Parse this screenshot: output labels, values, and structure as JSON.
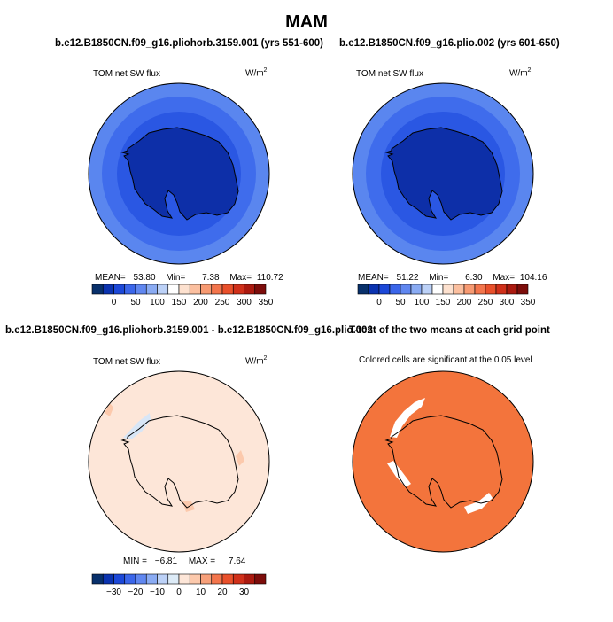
{
  "title": "MAM",
  "panels": {
    "top_left": {
      "case": "b.e12.B1850CN.f09_g16.pliohorb.3159.001 (yrs 551-600)",
      "variable": "TOM net SW flux",
      "units": "W/m",
      "units_sup": "2",
      "stats": {
        "mean_label": "MEAN=",
        "mean": "53.80",
        "min_label": "Min=",
        "min": "7.38",
        "max_label": "Max=",
        "max": "110.72"
      }
    },
    "top_right": {
      "case": "b.e12.B1850CN.f09_g16.plio.002 (yrs 601-650)",
      "variable": "TOM net SW flux",
      "units": "W/m",
      "units_sup": "2",
      "stats": {
        "mean_label": "MEAN=",
        "mean": "51.22",
        "min_label": "Min=",
        "min": "6.30",
        "max_label": "Max=",
        "max": "104.16"
      }
    },
    "bottom_left": {
      "case": "b.e12.B1850CN.f09_g16.pliohorb.3159.001 - b.e12.B1850CN.f09_g16.plio.002",
      "variable": "TOM net SW flux",
      "units": "W/m",
      "units_sup": "2",
      "stats": {
        "min_label": "MIN =",
        "min": "−6.81",
        "max_label": "MAX =",
        "max": "7.64"
      }
    },
    "bottom_right": {
      "case": "T-test of the two means at each grid point",
      "note": "Colored cells are significant at the 0.05 level"
    }
  },
  "colorbars": {
    "absolute": {
      "colors": [
        "#08306b",
        "#0b33b0",
        "#1c48d8",
        "#3b66ea",
        "#6087f0",
        "#8aabf3",
        "#bcd1f7",
        "#ffffff",
        "#fde1cf",
        "#fbbf9f",
        "#f79a72",
        "#f3754c",
        "#e9502b",
        "#d0301a",
        "#ab1a10",
        "#7d0d0b"
      ],
      "labels": [
        "0",
        "50",
        "100",
        "150",
        "200",
        "250",
        "300",
        "350"
      ]
    },
    "difference": {
      "colors": [
        "#08306b",
        "#0b33b0",
        "#1c48d8",
        "#3b66ea",
        "#6087f0",
        "#8aabf3",
        "#bcd1f7",
        "#ddebf7",
        "#fde6d8",
        "#fcc9ac",
        "#f7a07a",
        "#f3754c",
        "#e9502b",
        "#d0301a",
        "#ab1a10",
        "#7d0d0b"
      ],
      "labels": [
        "−30",
        "−20",
        "−10",
        "0",
        "10",
        "20",
        "30"
      ]
    }
  },
  "map_colors": {
    "ring_outer": "#5a86ef",
    "ring_mid": "#3f6cec",
    "ring_inner": "#2a57e3",
    "continent": "#0d2fa8",
    "diff_fill": "#fde6d8",
    "diff_warm": "#fcc9ac",
    "diff_cool": "#d8e6f6",
    "ttest_fill": "#f3743c",
    "ttest_insig": "#ffffff",
    "coast": "#000000"
  }
}
